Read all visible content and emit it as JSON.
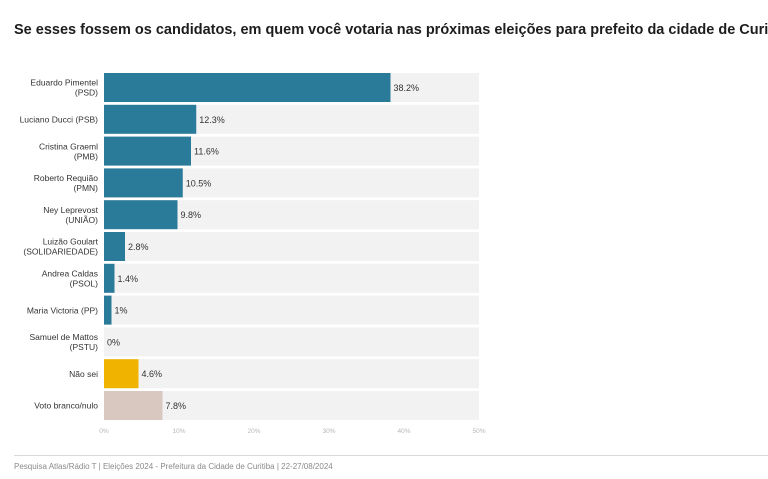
{
  "title": "Se esses fossem os candidatos, em quem você votaria nas próximas eleições para prefeito da cidade de Curitiba?",
  "footer": "Pesquisa Atlas/Rádio T  |  Eleições 2024 - Prefeitura da Cidade de Curitiba  |  22-27/08/2024",
  "colors": {
    "candidate": "#2a7a99",
    "nao_sei": "#f0b400",
    "branco_nulo": "#d8c8c0",
    "track": "#f2f2f2",
    "label": "#333333",
    "tick": "#b5b5b5"
  },
  "chart_data": {
    "type": "bar",
    "orientation": "horizontal",
    "xlim": [
      0,
      50
    ],
    "x_ticks": [
      "0%",
      "10%",
      "20%",
      "30%",
      "40%",
      "50%"
    ],
    "bars": [
      {
        "label": [
          "Eduardo Pimentel",
          "(PSD)"
        ],
        "value": 38.2,
        "value_label": "38.2%",
        "color_key": "candidate"
      },
      {
        "label": [
          "Luciano Ducci (PSB)"
        ],
        "value": 12.3,
        "value_label": "12.3%",
        "color_key": "candidate"
      },
      {
        "label": [
          "Cristina Graeml",
          "(PMB)"
        ],
        "value": 11.6,
        "value_label": "11.6%",
        "color_key": "candidate"
      },
      {
        "label": [
          "Roberto Requião",
          "(PMN)"
        ],
        "value": 10.5,
        "value_label": "10.5%",
        "color_key": "candidate"
      },
      {
        "label": [
          "Ney Leprevost",
          "(UNIÃO)"
        ],
        "value": 9.8,
        "value_label": "9.8%",
        "color_key": "candidate"
      },
      {
        "label": [
          "Luizão Goulart",
          "(SOLIDARIEDADE)"
        ],
        "value": 2.8,
        "value_label": "2.8%",
        "color_key": "candidate"
      },
      {
        "label": [
          "Andrea Caldas",
          "(PSOL)"
        ],
        "value": 1.4,
        "value_label": "1.4%",
        "color_key": "candidate"
      },
      {
        "label": [
          "Maria Victoria (PP)"
        ],
        "value": 1.0,
        "value_label": "1%",
        "color_key": "candidate"
      },
      {
        "label": [
          "Samuel de Mattos",
          "(PSTU)"
        ],
        "value": 0,
        "value_label": "0%",
        "color_key": "candidate"
      },
      {
        "label": [
          "Não sei"
        ],
        "value": 4.6,
        "value_label": "4.6%",
        "color_key": "nao_sei"
      },
      {
        "label": [
          "Voto branco/nulo"
        ],
        "value": 7.8,
        "value_label": "7.8%",
        "color_key": "branco_nulo"
      }
    ]
  }
}
